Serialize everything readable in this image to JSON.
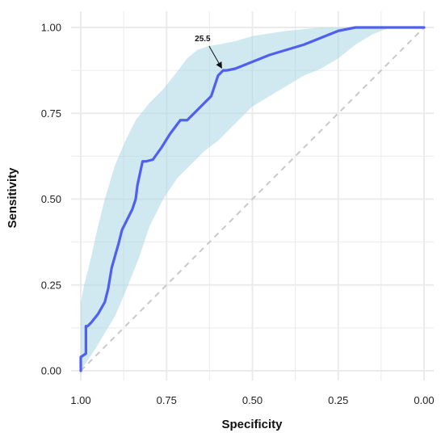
{
  "chart_data": {
    "type": "line",
    "title": "",
    "xlabel": "Specificity",
    "ylabel": "Sensitivity",
    "x_reversed": true,
    "xlim": [
      1.0,
      0.0
    ],
    "ylim": [
      0.0,
      1.0
    ],
    "x_ticks": [
      1.0,
      0.75,
      0.5,
      0.25,
      0.0
    ],
    "x_tick_labels": [
      "1.00",
      "0.75",
      "0.50",
      "0.25",
      "0.00"
    ],
    "y_ticks": [
      0.0,
      0.25,
      0.5,
      0.75,
      1.0
    ],
    "y_tick_labels": [
      "0.00",
      "0.25",
      "0.50",
      "0.75",
      "1.00"
    ],
    "grid": true,
    "colors": {
      "roc_line": "#4f5ff0",
      "confidence_band": "#a9d6e3",
      "diagonal": "#c8c8c8",
      "grid": "#ebebeb"
    },
    "series": [
      {
        "role": "roc_curve",
        "x": [
          1.0,
          1.0,
          0.985,
          0.985,
          0.98,
          0.97,
          0.95,
          0.93,
          0.92,
          0.91,
          0.89,
          0.88,
          0.87,
          0.85,
          0.84,
          0.835,
          0.82,
          0.81,
          0.79,
          0.765,
          0.74,
          0.71,
          0.69,
          0.67,
          0.64,
          0.62,
          0.6,
          0.585,
          0.575,
          0.55,
          0.5,
          0.45,
          0.4,
          0.35,
          0.3,
          0.25,
          0.2,
          0.17,
          0.15,
          0.1,
          0.05,
          0.0
        ],
        "y": [
          0.0,
          0.04,
          0.05,
          0.13,
          0.13,
          0.14,
          0.165,
          0.2,
          0.24,
          0.3,
          0.37,
          0.41,
          0.43,
          0.47,
          0.5,
          0.54,
          0.61,
          0.61,
          0.615,
          0.65,
          0.69,
          0.73,
          0.73,
          0.75,
          0.78,
          0.8,
          0.86,
          0.875,
          0.875,
          0.88,
          0.9,
          0.92,
          0.935,
          0.95,
          0.97,
          0.99,
          1.0,
          1.0,
          1.0,
          1.0,
          1.0,
          1.0
        ]
      },
      {
        "role": "confidence_band_upper",
        "x": [
          1.0,
          0.99,
          0.97,
          0.95,
          0.93,
          0.9,
          0.87,
          0.84,
          0.8,
          0.76,
          0.72,
          0.69,
          0.66,
          0.63,
          0.6,
          0.55,
          0.5,
          0.4,
          0.3,
          0.2,
          0.15,
          0.1,
          0.0
        ],
        "y": [
          0.2,
          0.25,
          0.33,
          0.42,
          0.5,
          0.6,
          0.67,
          0.73,
          0.78,
          0.82,
          0.87,
          0.91,
          0.935,
          0.945,
          0.95,
          0.96,
          0.975,
          0.99,
          1.0,
          1.0,
          1.0,
          1.0,
          1.0
        ]
      },
      {
        "role": "confidence_band_lower",
        "x": [
          1.0,
          0.98,
          0.96,
          0.93,
          0.9,
          0.87,
          0.83,
          0.8,
          0.76,
          0.72,
          0.68,
          0.64,
          0.6,
          0.55,
          0.5,
          0.45,
          0.4,
          0.35,
          0.3,
          0.25,
          0.2,
          0.15,
          0.1,
          0.0
        ],
        "y": [
          0.0,
          0.03,
          0.06,
          0.11,
          0.16,
          0.23,
          0.33,
          0.42,
          0.5,
          0.56,
          0.6,
          0.64,
          0.67,
          0.72,
          0.77,
          0.8,
          0.83,
          0.86,
          0.88,
          0.91,
          0.95,
          0.98,
          1.0,
          1.0
        ]
      }
    ],
    "annotations": [
      {
        "text": "25.5",
        "x": 0.585,
        "y": 0.875,
        "label_x": 0.645,
        "label_y": 0.96
      }
    ]
  }
}
